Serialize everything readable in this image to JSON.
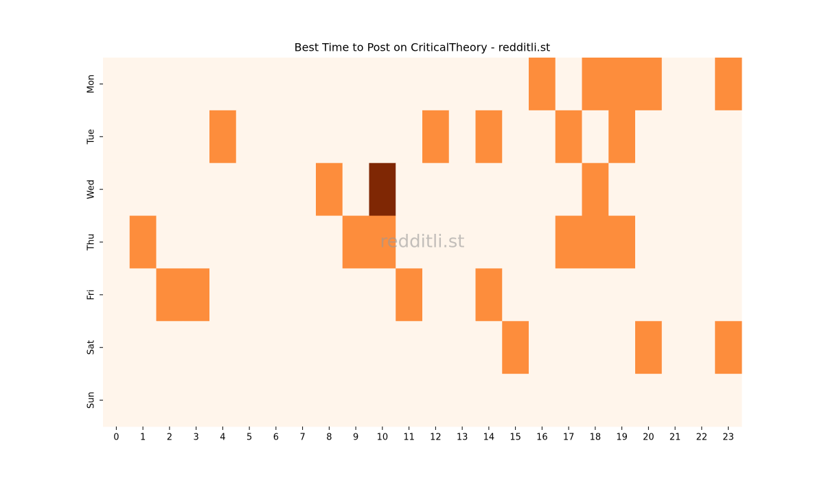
{
  "chart_data": {
    "type": "heatmap",
    "title": "Best Time to Post on CriticalTheory - redditli.st",
    "watermark": "redditli.st",
    "x": [
      0,
      1,
      2,
      3,
      4,
      5,
      6,
      7,
      8,
      9,
      10,
      11,
      12,
      13,
      14,
      15,
      16,
      17,
      18,
      19,
      20,
      21,
      22,
      23
    ],
    "y": [
      "Mon",
      "Tue",
      "Wed",
      "Thu",
      "Fri",
      "Sat",
      "Sun"
    ],
    "values": [
      [
        0,
        0,
        0,
        0,
        0,
        0,
        0,
        0,
        0,
        0,
        0,
        0,
        0,
        0,
        0,
        0,
        1,
        0,
        1,
        1,
        1,
        0,
        0,
        1
      ],
      [
        0,
        0,
        0,
        0,
        1,
        0,
        0,
        0,
        0,
        0,
        0,
        0,
        1,
        0,
        1,
        0,
        0,
        1,
        0,
        1,
        0,
        0,
        0,
        0
      ],
      [
        0,
        0,
        0,
        0,
        0,
        0,
        0,
        0,
        1,
        0,
        2,
        0,
        0,
        0,
        0,
        0,
        0,
        0,
        1,
        0,
        0,
        0,
        0,
        0
      ],
      [
        0,
        1,
        0,
        0,
        0,
        0,
        0,
        0,
        0,
        1,
        1,
        0,
        0,
        0,
        0,
        0,
        0,
        1,
        1,
        1,
        0,
        0,
        0,
        0
      ],
      [
        0,
        0,
        1,
        1,
        0,
        0,
        0,
        0,
        0,
        0,
        0,
        1,
        0,
        0,
        1,
        0,
        0,
        0,
        0,
        0,
        0,
        0,
        0,
        0
      ],
      [
        0,
        0,
        0,
        0,
        0,
        0,
        0,
        0,
        0,
        0,
        0,
        0,
        0,
        0,
        0,
        1,
        0,
        0,
        0,
        0,
        1,
        0,
        0,
        1
      ],
      [
        0,
        0,
        0,
        0,
        0,
        0,
        0,
        0,
        0,
        0,
        0,
        0,
        0,
        0,
        0,
        0,
        0,
        0,
        0,
        0,
        0,
        0,
        0,
        0
      ]
    ],
    "zlim": [
      0,
      2
    ],
    "colormap": [
      "#fff5eb",
      "#fd8d3c",
      "#7f2704"
    ]
  }
}
